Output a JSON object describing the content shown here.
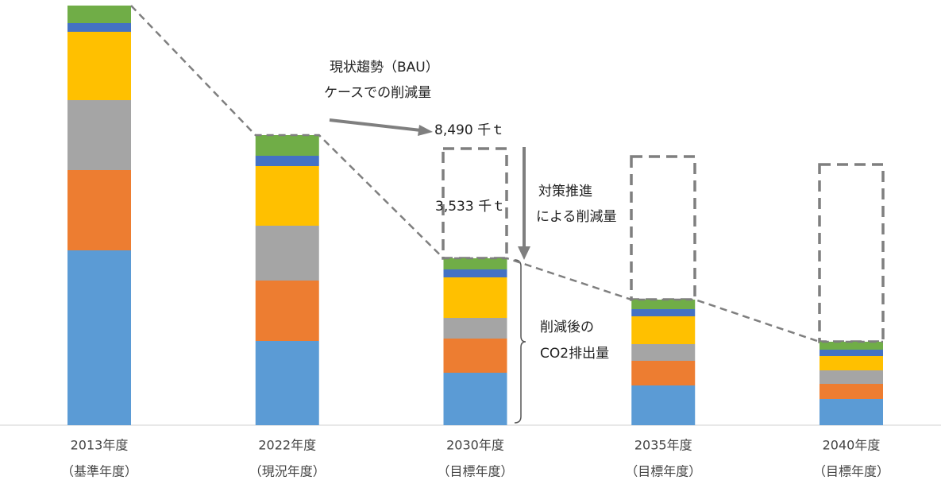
{
  "chart_data": {
    "type": "stacked_bar",
    "categories": [
      [
        "2013年度",
        "（基準年度）"
      ],
      [
        "2022年度",
        "（現況年度）"
      ],
      [
        "2030年度",
        "（目標年度）"
      ],
      [
        "2035年度",
        "（目標年度）"
      ],
      [
        "2040年度",
        "（目標年度）"
      ]
    ],
    "series": [
      {
        "color": "#5b9bd5",
        "values": [
          5500,
          2650,
          1650,
          1250,
          825
        ]
      },
      {
        "color": "#ed7d31",
        "values": [
          2525,
          1900,
          1075,
          775,
          475
        ]
      },
      {
        "color": "#a5a5a5",
        "values": [
          2200,
          1725,
          650,
          525,
          425
        ]
      },
      {
        "color": "#ffc000",
        "values": [
          2150,
          1875,
          1275,
          875,
          450
        ]
      },
      {
        "color": "#4472c4",
        "values": [
          275,
          325,
          250,
          225,
          200
        ]
      },
      {
        "color": "#70ad47",
        "values": [
          550,
          650,
          350,
          300,
          250
        ]
      }
    ],
    "ylim": [
      0,
      13250
    ],
    "annotations": [
      "現状趨勢（BAU）",
      "ケースでの削減量",
      "8,490 千ｔ",
      "3,533 千ｔ",
      "対策推進",
      "による削減量",
      "削減後の",
      "CO2排出量"
    ]
  }
}
